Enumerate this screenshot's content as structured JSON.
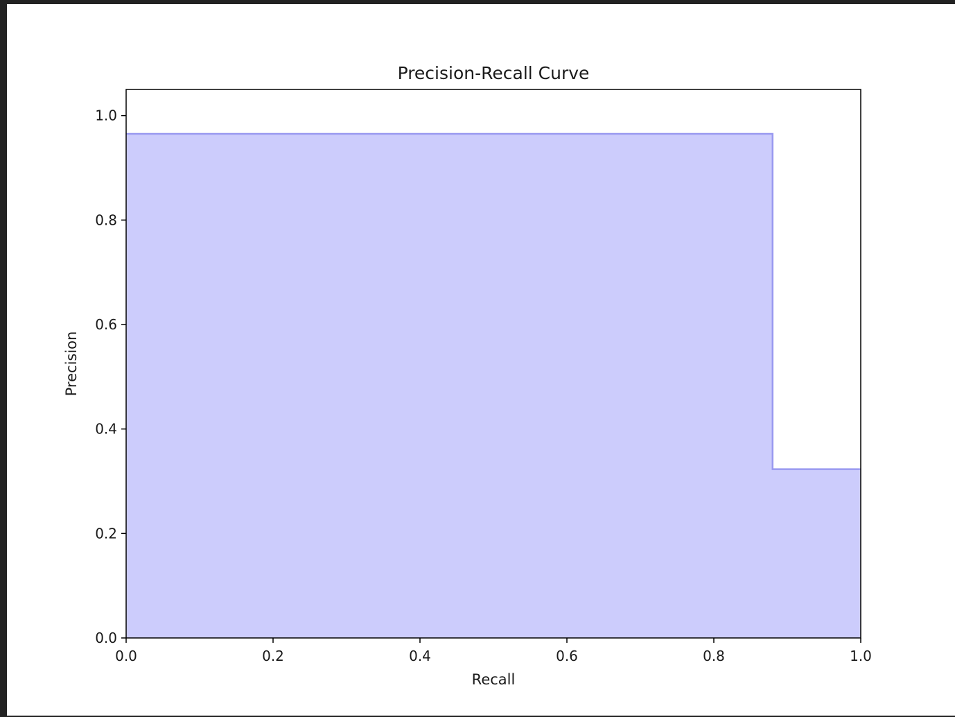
{
  "colors": {
    "outer_background": "#222222",
    "figure_background": "#ffffff",
    "fill": "#ccccfc",
    "curve": "#9999f0",
    "axes": "#000000",
    "text": "#1a1a1a"
  },
  "chart_data": {
    "type": "area",
    "step": "post",
    "title": "Precision-Recall Curve",
    "xlabel": "Recall",
    "ylabel": "Precision",
    "xlim": [
      0.0,
      1.0
    ],
    "ylim": [
      0.0,
      1.05
    ],
    "grid": false,
    "x_ticks": [
      "0.0",
      "0.2",
      "0.4",
      "0.6",
      "0.8",
      "1.0"
    ],
    "y_ticks": [
      "0.0",
      "0.2",
      "0.4",
      "0.6",
      "0.8",
      "1.0"
    ],
    "series": [
      {
        "x": [
          0.0,
          0.88,
          1.0
        ],
        "y": [
          0.965,
          0.323,
          0.323
        ]
      }
    ]
  }
}
